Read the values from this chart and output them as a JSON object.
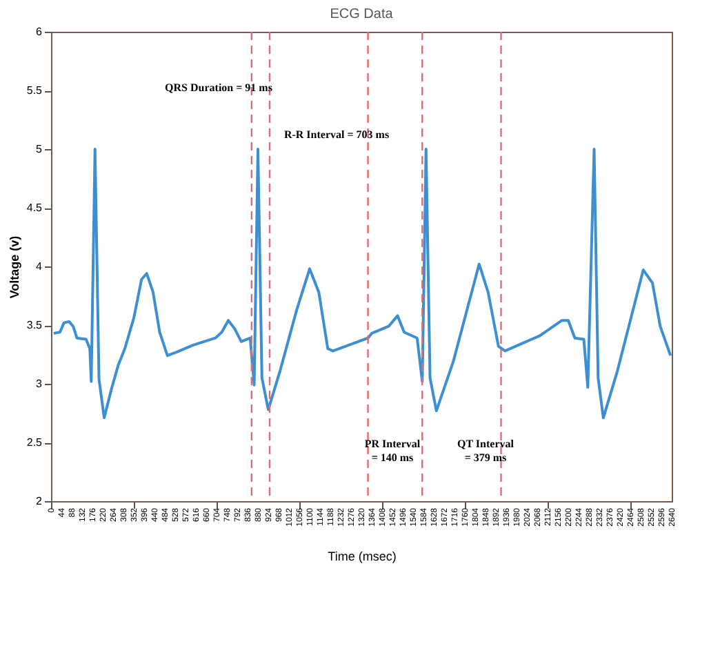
{
  "chart_data": {
    "type": "line",
    "title": "ECG Data",
    "xlabel": "Time (msec)",
    "ylabel": "Voltage (v)",
    "x": [
      11,
      38,
      55,
      77,
      94,
      110,
      149,
      165,
      171,
      187,
      204,
      226,
      259,
      286,
      314,
      352,
      385,
      407,
      434,
      462,
      495,
      534,
      605,
      699,
      726,
      754,
      781,
      809,
      847,
      864,
      880,
      897,
      924,
      974,
      1045,
      1100,
      1139,
      1177,
      1199,
      1348,
      1364,
      1436,
      1474,
      1502,
      1557,
      1579,
      1595,
      1612,
      1639,
      1711,
      1821,
      1859,
      1903,
      1931,
      2079,
      2173,
      2200,
      2228,
      2266,
      2283,
      2310,
      2327,
      2349,
      2409,
      2519,
      2558,
      2591,
      2635
    ],
    "series": [
      {
        "color": "#3d8fd1",
        "values": [
          3.43,
          3.44,
          3.52,
          3.53,
          3.49,
          3.39,
          3.38,
          3.3,
          3.02,
          5.0,
          3.04,
          2.71,
          2.97,
          3.16,
          3.3,
          3.56,
          3.89,
          3.94,
          3.78,
          3.44,
          3.24,
          3.27,
          3.33,
          3.39,
          3.44,
          3.54,
          3.47,
          3.36,
          3.39,
          2.99,
          5.0,
          3.05,
          2.78,
          3.11,
          3.63,
          3.98,
          3.78,
          3.3,
          3.28,
          3.39,
          3.43,
          3.49,
          3.58,
          3.44,
          3.39,
          3.02,
          5.0,
          3.05,
          2.77,
          3.19,
          4.02,
          3.78,
          3.32,
          3.28,
          3.41,
          3.54,
          3.54,
          3.39,
          3.38,
          2.97,
          5.0,
          3.05,
          2.71,
          3.11,
          3.97,
          3.86,
          3.49,
          3.24
        ]
      }
    ],
    "xlim": [
      0,
      2640
    ],
    "xticks": [
      0,
      44,
      88,
      132,
      176,
      220,
      264,
      308,
      352,
      396,
      440,
      484,
      528,
      572,
      616,
      660,
      704,
      748,
      792,
      836,
      880,
      924,
      968,
      1012,
      1056,
      1100,
      1144,
      1188,
      1232,
      1276,
      1320,
      1364,
      1408,
      1452,
      1496,
      1540,
      1584,
      1628,
      1672,
      1716,
      1760,
      1804,
      1848,
      1892,
      1936,
      1980,
      2024,
      2068,
      2112,
      2156,
      2200,
      2244,
      2288,
      2332,
      2376,
      2420,
      2464,
      2508,
      2552,
      2596,
      2640
    ],
    "ylim": [
      2,
      6
    ],
    "yticks": [
      2,
      2.5,
      3,
      3.5,
      4,
      4.5,
      5,
      5.5,
      6
    ],
    "grid": false,
    "marker": "none",
    "line_style": "solid",
    "ref_lines": [
      {
        "axis": "x",
        "value": 853,
        "color": "#e86a6a",
        "line_style": "dashed"
      },
      {
        "axis": "x",
        "value": 930,
        "color": "#e86a6a",
        "line_style": "dashed"
      },
      {
        "axis": "x",
        "value": 1348,
        "color": "#e86a6a",
        "line_style": "dashed"
      },
      {
        "axis": "x",
        "value": 1579,
        "color": "#e86a6a",
        "line_style": "dashed"
      },
      {
        "axis": "x",
        "value": 1914,
        "color": "#e86a6a",
        "line_style": "dashed"
      }
    ],
    "annotations": [
      "QRS Duration = 91 ms",
      "R-R Interval = 703 ms",
      "PR Interval\n= 140 ms",
      "QT Interval\n= 379 ms"
    ]
  }
}
